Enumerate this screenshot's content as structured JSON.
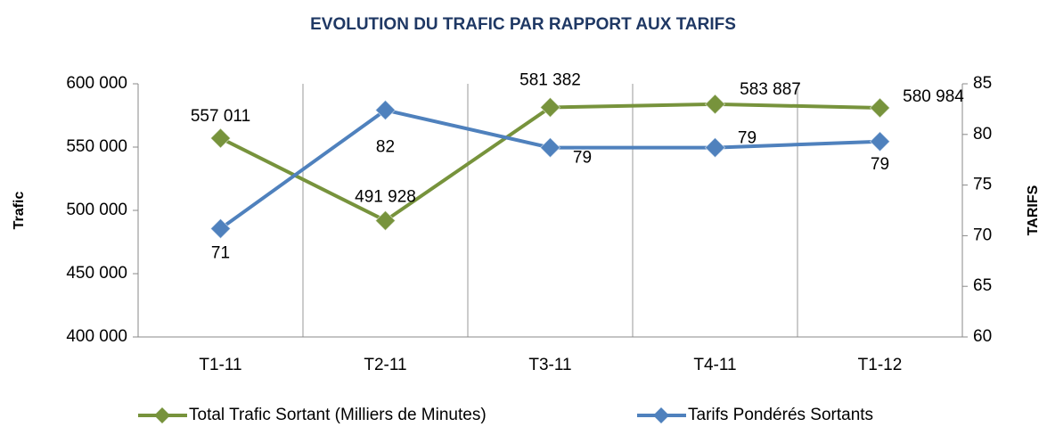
{
  "chart_data": {
    "type": "line",
    "title": "EVOLUTION DU TRAFIC PAR RAPPORT AUX TARIFS",
    "y_label": "Trafic",
    "y2_label": "TARIFS",
    "categories": [
      "T1-11",
      "T2-11",
      "T3-11",
      "T4-11",
      "T1-12"
    ],
    "series": [
      {
        "name": "Total Trafic Sortant (Milliers de Minutes)",
        "color": "#77933c",
        "axis": "y",
        "values": [
          557011,
          491928,
          581382,
          583887,
          580984
        ],
        "value_labels": [
          "557 011",
          "491 928",
          "581 382",
          "583 887",
          "580 984"
        ]
      },
      {
        "name": "Tarifs Pondérés Sortants",
        "color": "#4f81bd",
        "axis": "y2",
        "values": [
          70.7,
          82.4,
          78.7,
          78.7,
          79.3
        ],
        "value_labels": [
          "71",
          "82",
          "79",
          "79",
          "79"
        ]
      }
    ],
    "ylim": [
      400000,
      600000
    ],
    "yticks": [
      {
        "value": 400000,
        "label": "400 000"
      },
      {
        "value": 450000,
        "label": "450 000"
      },
      {
        "value": 500000,
        "label": "500 000"
      },
      {
        "value": 550000,
        "label": "550 000"
      },
      {
        "value": 600000,
        "label": "600 000"
      }
    ],
    "y2lim": [
      60,
      85
    ],
    "y2ticks": [
      60,
      65,
      70,
      75,
      80,
      85
    ],
    "legend": "bottom"
  }
}
